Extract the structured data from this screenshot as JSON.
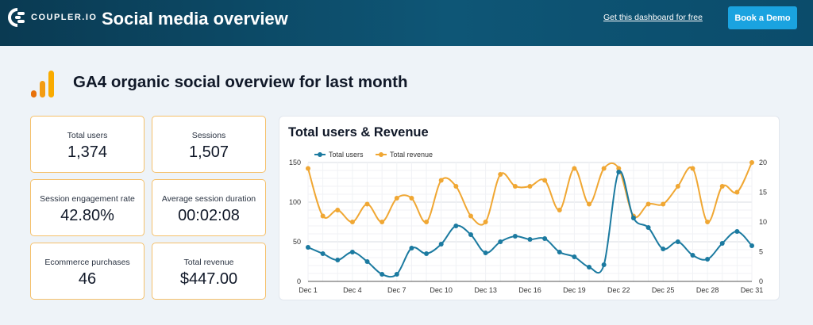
{
  "header": {
    "logo_text": "COUPLER.IO",
    "title": "Social media overview",
    "link_text": "Get this dashboard for free",
    "button_label": "Book a Demo"
  },
  "section": {
    "title": "GA4 organic social overview for last month"
  },
  "kpis": [
    {
      "label": "Total users",
      "value": "1,374"
    },
    {
      "label": "Sessions",
      "value": "1,507"
    },
    {
      "label": "Session engagement rate",
      "value": "42.80%"
    },
    {
      "label": "Average session duration",
      "value": "00:02:08"
    },
    {
      "label": "Ecommerce purchases",
      "value": "46"
    },
    {
      "label": "Total revenue",
      "value": "$447.00"
    }
  ],
  "colors": {
    "users": "#1b7aa0",
    "revenue": "#f0a733",
    "kpi_border": "#f5c06a",
    "header": "#0e5676",
    "button": "#1aa3e0"
  },
  "chart_data": {
    "type": "line",
    "title": "Total users & Revenue",
    "categories": [
      "Dec 1",
      "Dec 2",
      "Dec 3",
      "Dec 4",
      "Dec 5",
      "Dec 6",
      "Dec 7",
      "Dec 8",
      "Dec 9",
      "Dec 10",
      "Dec 11",
      "Dec 12",
      "Dec 13",
      "Dec 14",
      "Dec 15",
      "Dec 16",
      "Dec 17",
      "Dec 18",
      "Dec 19",
      "Dec 20",
      "Dec 21",
      "Dec 22",
      "Dec 23",
      "Dec 24",
      "Dec 25",
      "Dec 26",
      "Dec 27",
      "Dec 28",
      "Dec 29",
      "Dec 30",
      "Dec 31"
    ],
    "tick_labels": [
      "Dec 1",
      "Dec 4",
      "Dec 7",
      "Dec 10",
      "Dec 13",
      "Dec 16",
      "Dec 19",
      "Dec 22",
      "Dec 25",
      "Dec 28",
      "Dec 31"
    ],
    "tick_every": 3,
    "series": [
      {
        "name": "Total users",
        "axis": "left",
        "values": [
          43,
          35,
          27,
          37,
          25,
          9,
          9,
          42,
          35,
          47,
          70,
          59,
          36,
          50,
          57,
          53,
          54,
          37,
          31,
          18,
          21,
          138,
          80,
          68,
          41,
          50,
          33,
          28,
          48,
          63,
          45
        ]
      },
      {
        "name": "Total revenue",
        "axis": "right",
        "values": [
          19,
          11,
          12,
          10,
          13,
          10,
          14,
          14,
          10,
          17,
          16,
          11,
          10,
          18,
          16,
          16,
          17,
          12,
          19,
          13,
          19,
          19,
          11,
          13,
          13,
          16,
          19,
          10,
          16,
          15,
          20
        ]
      }
    ],
    "y_left": {
      "min": 0,
      "max": 150,
      "ticks": [
        0,
        50,
        100,
        150
      ]
    },
    "y_right": {
      "min": 0,
      "max": 20,
      "ticks": [
        0,
        5,
        10,
        15,
        20
      ]
    },
    "legend_position": "top-left",
    "grid": true
  }
}
